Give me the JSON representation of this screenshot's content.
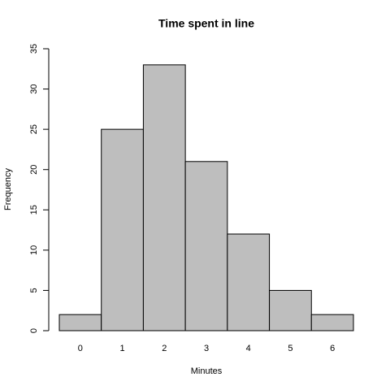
{
  "chart_data": {
    "type": "bar",
    "title": "Time spent in line",
    "x_label": "Minutes",
    "y_label": "Frequency",
    "categories": [
      "0",
      "1",
      "2",
      "3",
      "4",
      "5",
      "6"
    ],
    "values": [
      2,
      25,
      33,
      21,
      12,
      5,
      2
    ],
    "color": "#bebebe",
    "ylim": [
      0,
      35
    ],
    "yticks": [
      0,
      5,
      10,
      15,
      20,
      25,
      30,
      35
    ],
    "grid": false
  }
}
